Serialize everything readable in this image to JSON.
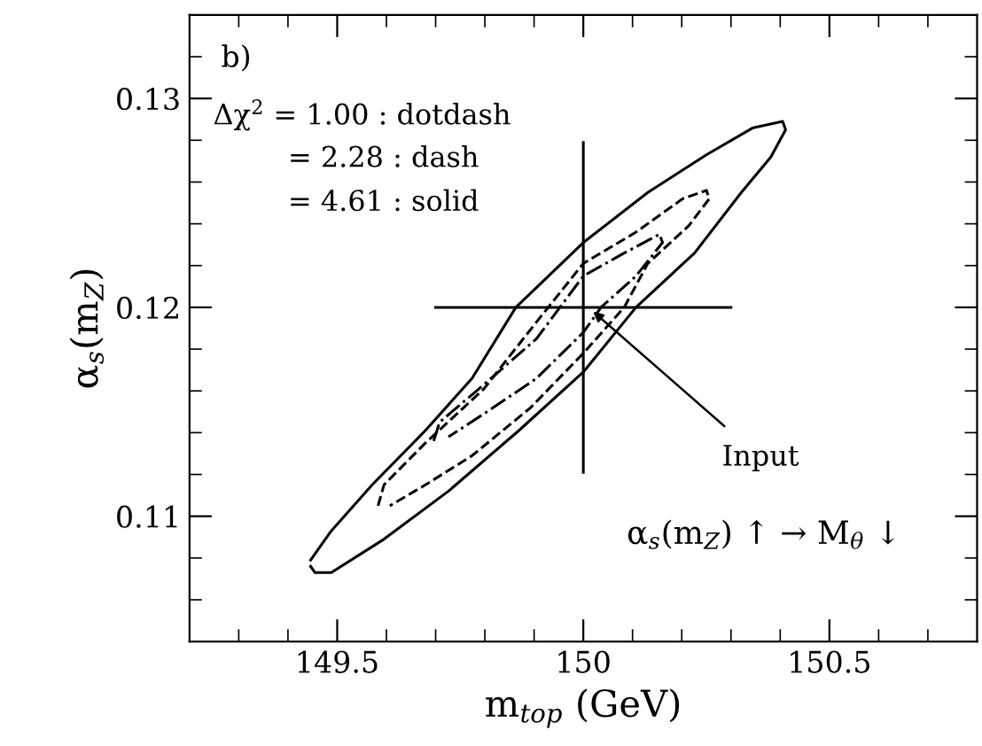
{
  "chart_data": {
    "type": "line",
    "xlabel": "m$_{top}$ (GeV)",
    "ylabel": "α$_{s}$(m$_{Z}$)",
    "xlim": [
      149.2,
      150.8
    ],
    "ylim": [
      0.104,
      0.134
    ],
    "xticks": [
      {
        "value": 149.3,
        "label": null
      },
      {
        "value": 149.4,
        "label": null
      },
      149.5,
      {
        "value": 149.6,
        "label": null
      },
      {
        "value": 149.7,
        "label": null
      },
      {
        "value": 149.8,
        "label": null
      },
      {
        "value": 149.9,
        "label": null
      },
      150,
      {
        "value": 150.1,
        "label": null
      },
      {
        "value": 150.2,
        "label": null
      },
      {
        "value": 150.3,
        "label": null
      },
      {
        "value": 150.4,
        "label": null
      },
      150.5,
      {
        "value": 150.6,
        "label": null
      },
      {
        "value": 150.7,
        "label": null
      }
    ],
    "yticks": [
      {
        "value": 0.106,
        "label": null
      },
      {
        "value": 0.108,
        "label": null
      },
      0.11,
      {
        "value": 0.112,
        "label": null
      },
      {
        "value": 0.114,
        "label": null
      },
      {
        "value": 0.116,
        "label": null
      },
      {
        "value": 0.118,
        "label": null
      },
      0.12,
      {
        "value": 0.122,
        "label": null
      },
      {
        "value": 0.124,
        "label": null
      },
      {
        "value": 0.126,
        "label": null
      },
      {
        "value": 0.128,
        "label": null
      },
      0.13,
      {
        "value": 0.132,
        "label": null
      }
    ],
    "grid": false,
    "marker": "none",
    "series": [
      {
        "color": "#000000",
        "line_style": "solid",
        "x": [
          149.446,
          149.488,
          149.571,
          149.679,
          149.774,
          149.863,
          150.0,
          150.131,
          150.25,
          150.345,
          150.405,
          150.411,
          150.381,
          150.321,
          150.226,
          150.107,
          150.0,
          149.869,
          149.726,
          149.595,
          149.488,
          149.455,
          149.446
        ],
        "values": [
          0.1079,
          0.1093,
          0.1115,
          0.1141,
          0.1166,
          0.12,
          0.1231,
          0.1255,
          0.1273,
          0.1286,
          0.1289,
          0.1285,
          0.1272,
          0.1255,
          0.1226,
          0.12,
          0.1169,
          0.1141,
          0.1112,
          0.1089,
          0.1073,
          0.1073,
          0.1076
        ]
      },
      {
        "color": "#000000",
        "line_style": "dashed",
        "x": [
          149.583,
          149.595,
          149.679,
          149.798,
          149.905,
          150.0,
          150.107,
          150.202,
          150.25,
          150.256,
          150.214,
          150.131,
          150.083,
          150.0,
          149.893,
          149.774,
          149.679,
          149.607
        ],
        "values": [
          0.1105,
          0.1115,
          0.1135,
          0.1161,
          0.1193,
          0.1221,
          0.1236,
          0.1252,
          0.1256,
          0.1252,
          0.1239,
          0.1221,
          0.12,
          0.1178,
          0.1152,
          0.1129,
          0.1115,
          0.1105
        ]
      },
      {
        "color": "#000000",
        "line_style": "dashdot",
        "x": [
          149.696,
          149.708,
          149.798,
          149.905,
          150.0,
          150.083,
          150.155,
          150.161,
          150.107,
          150.036,
          150.0,
          149.905,
          149.798,
          149.726
        ],
        "values": [
          0.1136,
          0.1145,
          0.1163,
          0.1185,
          0.1215,
          0.1226,
          0.1235,
          0.1231,
          0.1215,
          0.12,
          0.1188,
          0.1166,
          0.1149,
          0.1138
        ]
      },
      {
        "color": "#000000",
        "line_style": "solid",
        "x": [
          149.7,
          150.3
        ],
        "values": [
          0.12,
          0.12
        ]
      },
      {
        "color": "#000000",
        "line_style": "solid",
        "x": [
          150.0,
          150.0
        ],
        "values": [
          0.1279,
          0.1121
        ]
      }
    ],
    "annotations": [
      "b)",
      "Δχ$^{2}$ = 1.00 : dotdash",
      "= 2.28 : dash",
      "= 4.61 : solid",
      {
        "text": "Input",
        "x": 150.02,
        "y": 0.1198
      },
      "α$_{s}$(m$_{Z}$) ↑ → M$_{θ}$ ↓"
    ]
  }
}
